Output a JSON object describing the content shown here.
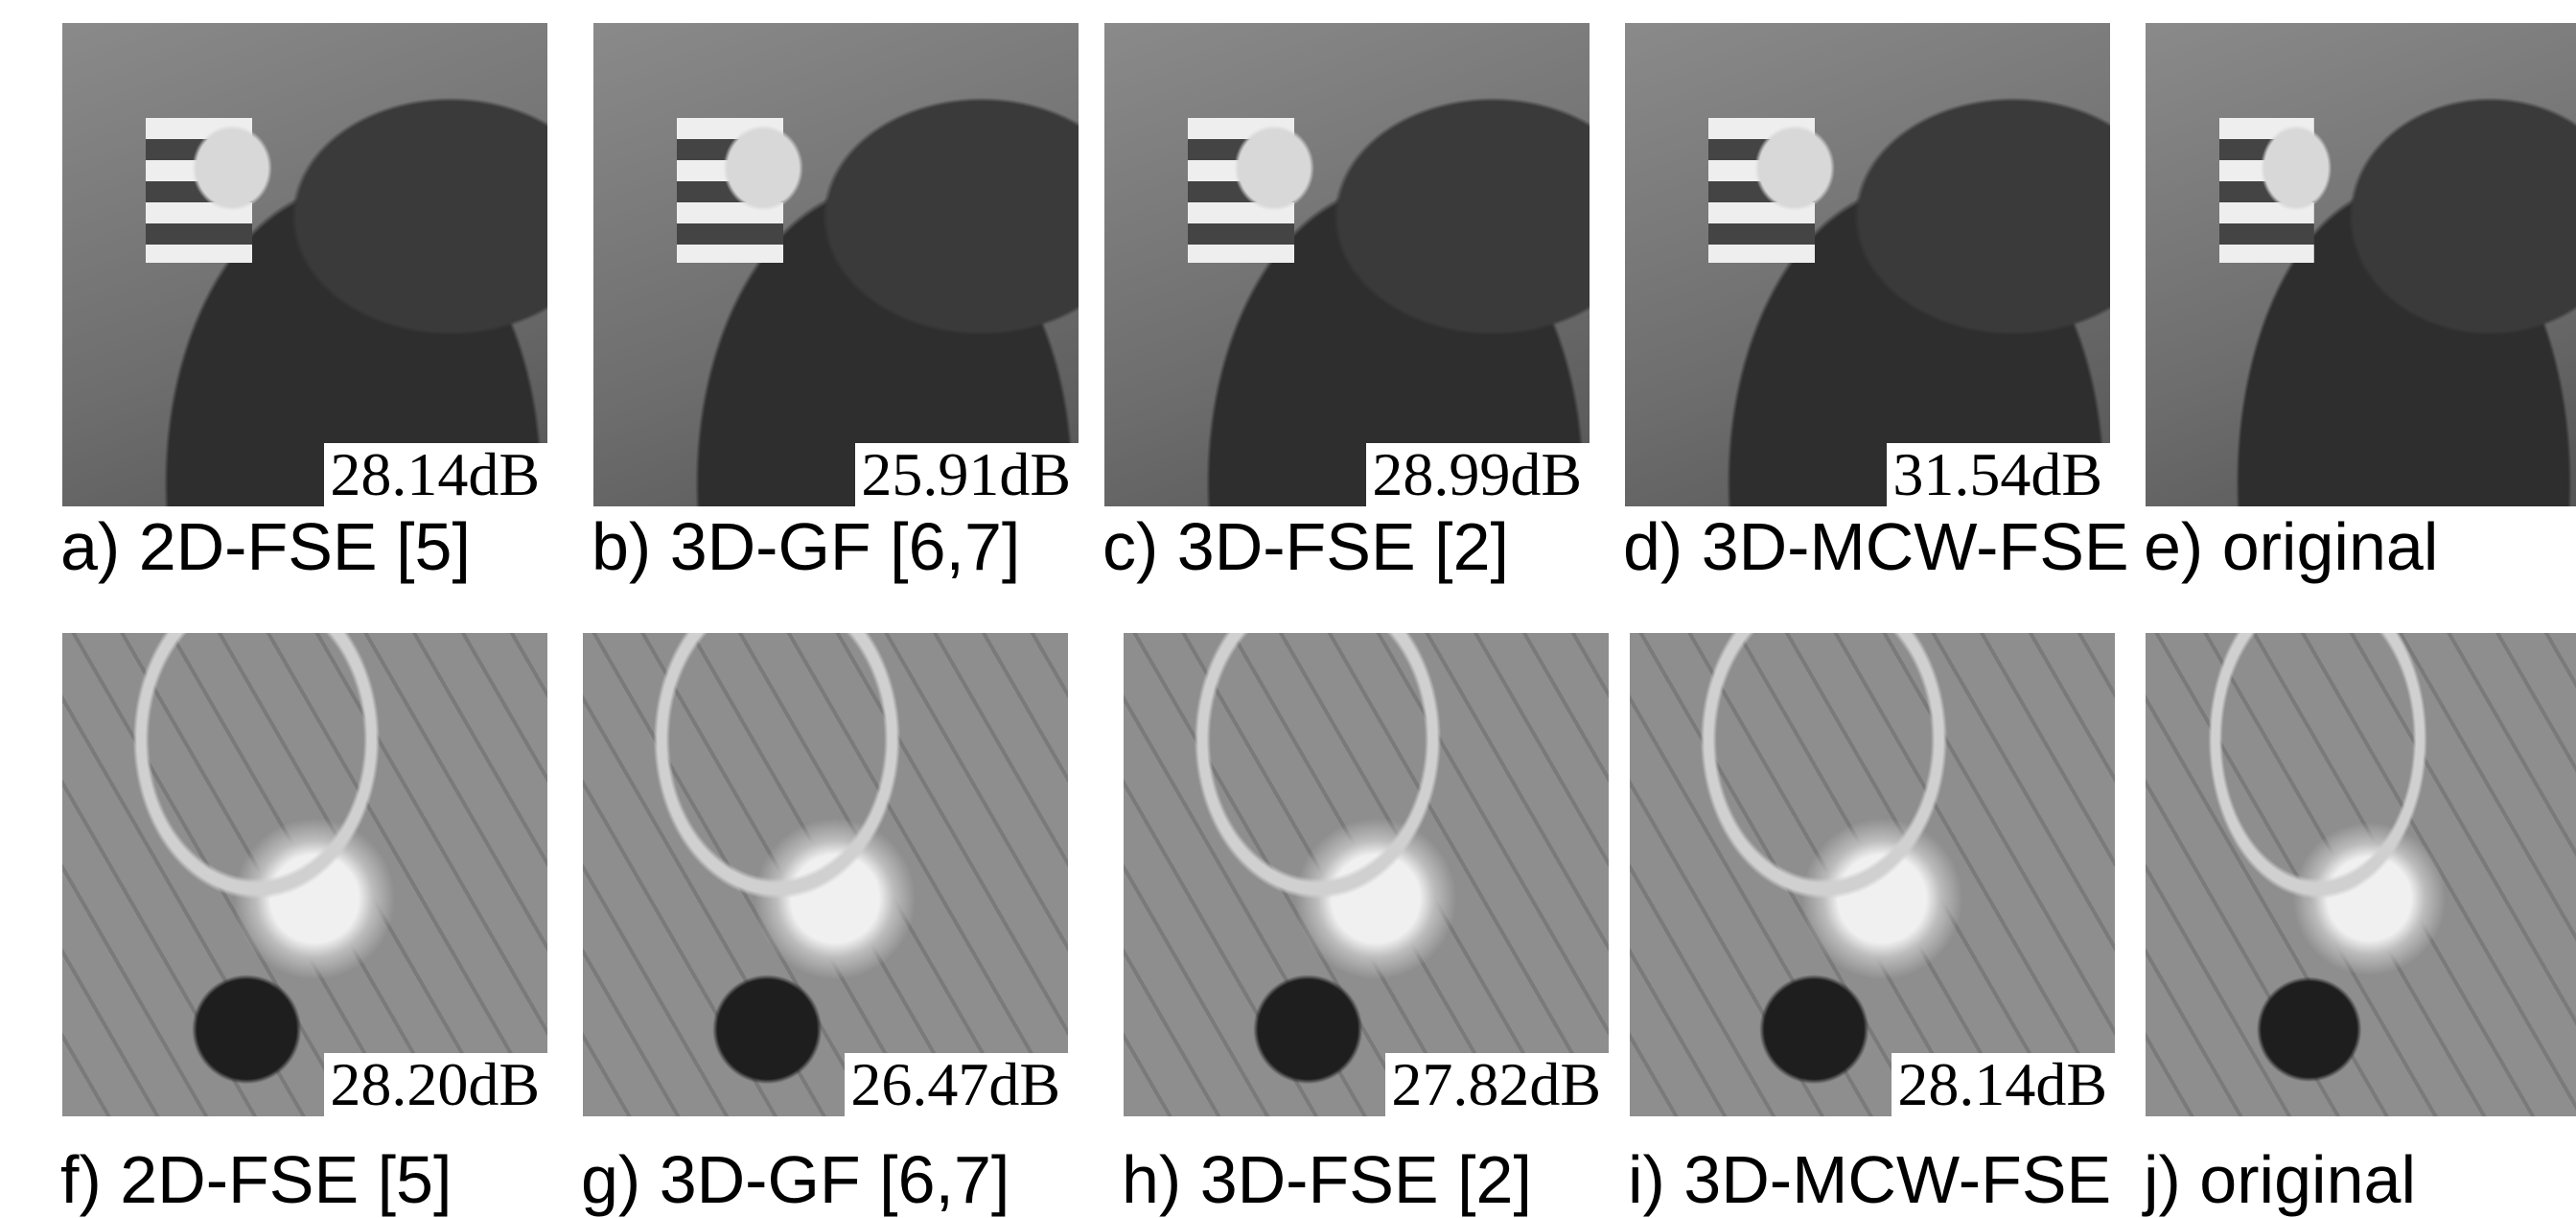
{
  "panels": [
    {
      "caption": "a) 2D-FSE [5]",
      "psnr": "28.14dB"
    },
    {
      "caption": "b) 3D-GF [6,7]",
      "psnr": "25.91dB"
    },
    {
      "caption": "c) 3D-FSE [2]",
      "psnr": "28.99dB"
    },
    {
      "caption": "d) 3D-MCW-FSE",
      "psnr": "31.54dB"
    },
    {
      "caption": "e) original"
    },
    {
      "caption": "f) 2D-FSE [5]",
      "psnr": "28.20dB"
    },
    {
      "caption": "g) 3D-GF [6,7]",
      "psnr": "26.47dB"
    },
    {
      "caption": "h) 3D-FSE [2]",
      "psnr": "27.82dB"
    },
    {
      "caption": "i) 3D-MCW-FSE",
      "psnr": "28.14dB"
    },
    {
      "caption": "j) original"
    }
  ]
}
